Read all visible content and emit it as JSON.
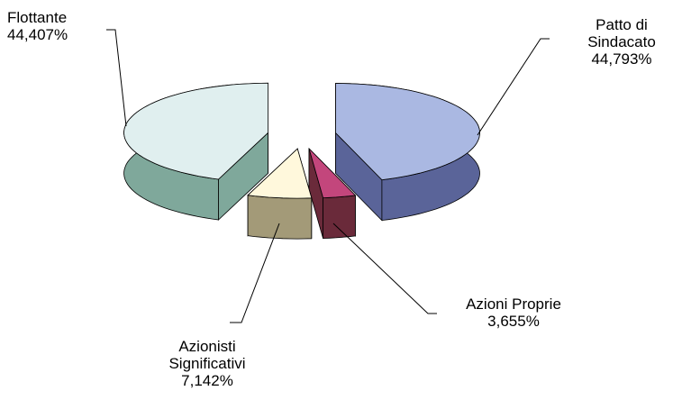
{
  "chart_data": {
    "type": "pie",
    "categories": [
      "Patto di Sindacato",
      "Azioni Proprie",
      "Azionisti Significativi",
      "Flottante"
    ],
    "values": [
      44.793,
      3.655,
      7.142,
      44.407
    ],
    "value_labels": [
      "44,793%",
      "3,655%",
      "7,142%",
      "44,407%"
    ],
    "colors": [
      "#aab8e2",
      "#c3467c",
      "#fff8dc",
      "#e0efef"
    ],
    "side_colors": [
      "#5a6499",
      "#6a2a3a",
      "#a39a78",
      "#7fa89b"
    ]
  }
}
